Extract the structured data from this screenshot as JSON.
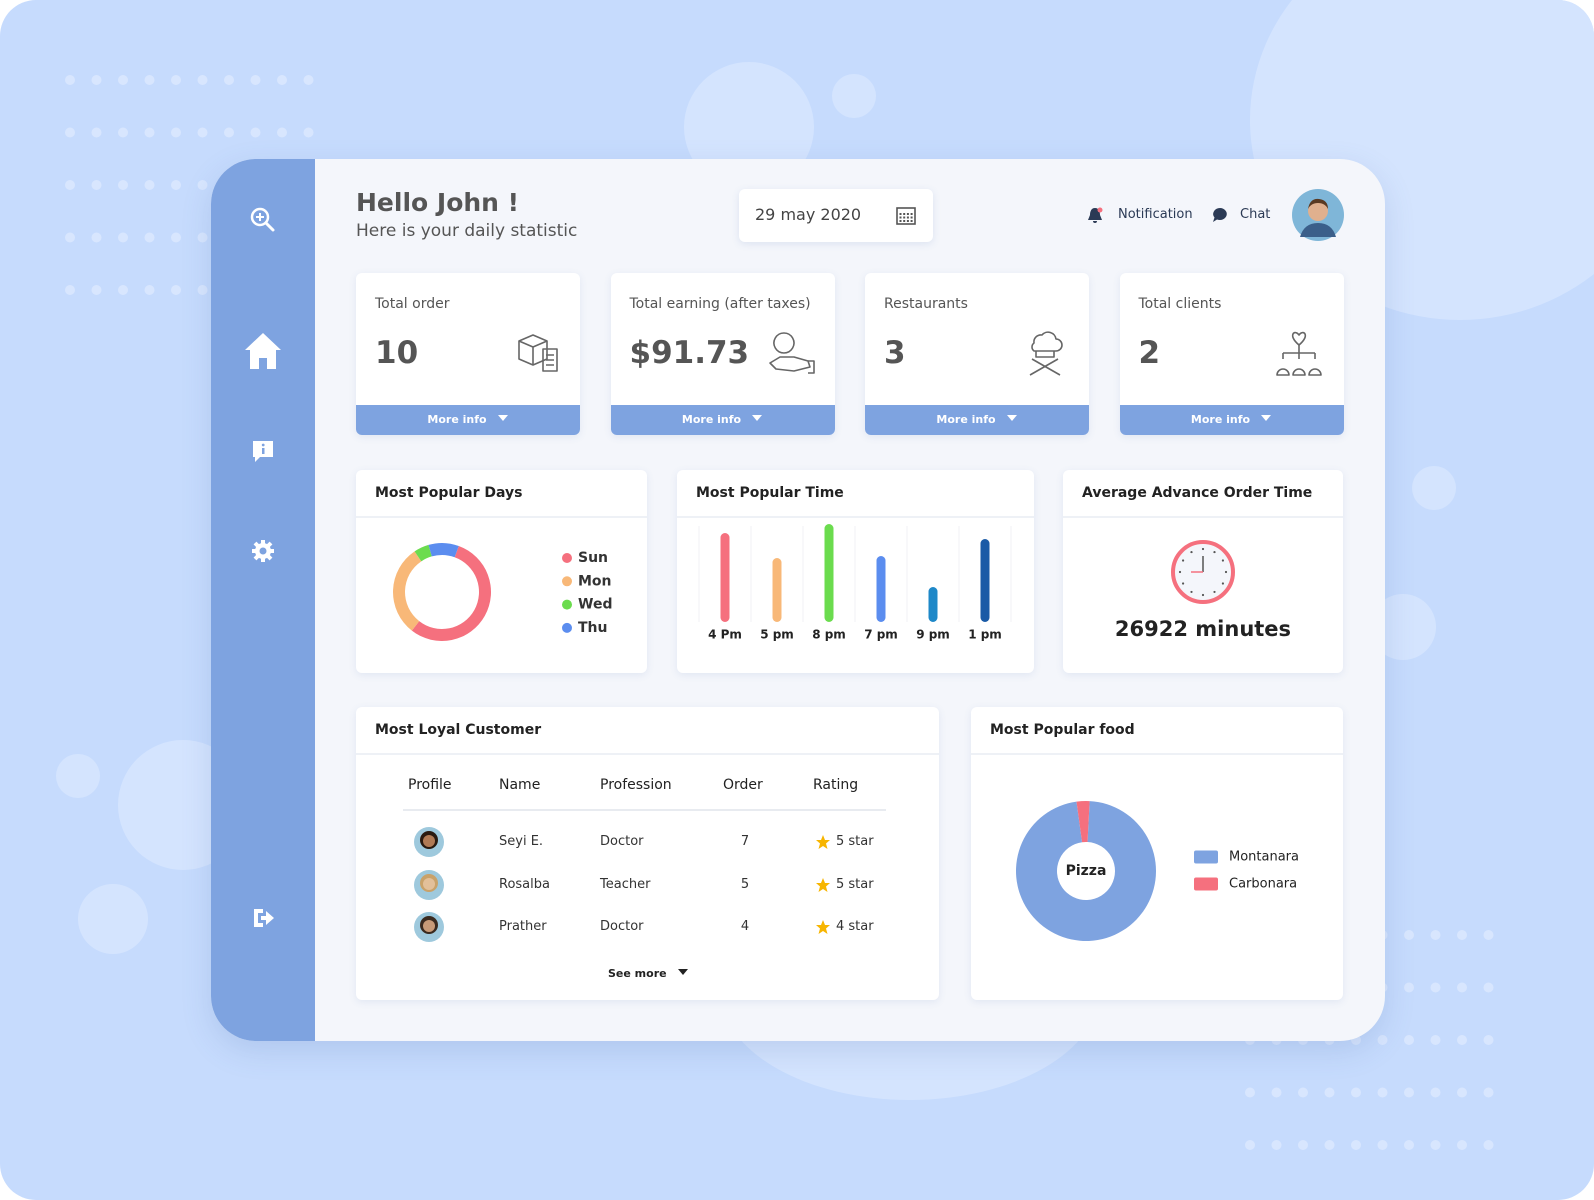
{
  "header": {
    "greeting": "Hello John !",
    "subtitle": "Here is your daily statistic",
    "date": "29 may 2020",
    "notification": "Notification",
    "chat": "Chat"
  },
  "stats": [
    {
      "label": "Total order",
      "value": "10",
      "button": "More info"
    },
    {
      "label": "Total earning (after taxes)",
      "value": "$91.73",
      "button": "More info"
    },
    {
      "label": "Restaurants",
      "value": "3",
      "button": "More info"
    },
    {
      "label": "Total clients",
      "value": "2",
      "button": "More info"
    }
  ],
  "chart_data": [
    {
      "type": "donut",
      "title": "Most Popular Days",
      "categories": [
        "Sun",
        "Mon",
        "Wed",
        "Thu"
      ],
      "values": [
        55,
        30,
        5,
        10
      ],
      "colors": [
        "#f5707e",
        "#f8b878",
        "#6bdc4e",
        "#5b8def"
      ],
      "legend_marker": "circle"
    },
    {
      "type": "bar",
      "title": "Most Popular Time",
      "categories": [
        "4 Pm",
        "5 pm",
        "8 pm",
        "7 pm",
        "9 pm",
        "1 pm"
      ],
      "values": [
        89,
        64,
        98,
        66,
        35,
        83
      ],
      "colors": [
        "#f5707e",
        "#f8b878",
        "#6bdc4e",
        "#5b8def",
        "#1e88c8",
        "#1a5aa6"
      ],
      "ylim": [
        0,
        100
      ]
    },
    {
      "type": "donut",
      "title": "Most Popular food",
      "center_label": "Pizza",
      "categories": [
        "Montanara",
        "Carbonara"
      ],
      "values": [
        97,
        3
      ],
      "colors": [
        "#7ea3e0",
        "#f5707e"
      ],
      "legend_marker": "square"
    }
  ],
  "average_order": {
    "title": "Average Advance Order Time",
    "value": "26922 minutes"
  },
  "customers": {
    "title": "Most Loyal Customer",
    "headers": [
      "Profile",
      "Name",
      "Profession",
      "Order",
      "Rating"
    ],
    "rows": [
      {
        "name": "Seyi E.",
        "profession": "Doctor",
        "order": "7",
        "rating": "5 star"
      },
      {
        "name": "Rosalba",
        "profession": "Teacher",
        "order": "5",
        "rating": "5 star"
      },
      {
        "name": "Prather",
        "profession": "Doctor",
        "order": "4",
        "rating": "4 star"
      }
    ],
    "see_more": "See more"
  }
}
